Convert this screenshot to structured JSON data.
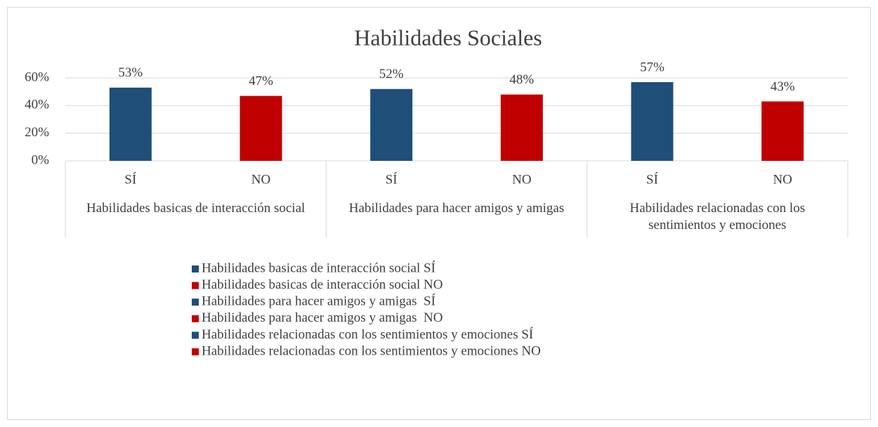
{
  "chart_data": {
    "type": "bar",
    "title": "Habilidades Sociales",
    "categories": [
      "SÍ",
      "NO",
      "SÍ",
      "NO",
      "SÍ",
      "NO"
    ],
    "groups": [
      "Habilidades basicas de interacción social",
      "Habilidades para hacer amigos y amigas",
      "Habilidades relacionadas con los sentimientos y emociones"
    ],
    "series": [
      {
        "name": "Habilidades basicas de interacción social SÍ",
        "color": "#1f4e79",
        "values": [
          53,
          null,
          null,
          null,
          null,
          null
        ],
        "value_labels": [
          "53%",
          null,
          null,
          null,
          null,
          null
        ]
      },
      {
        "name": "Habilidades basicas de interacción social NO",
        "color": "#c00000",
        "values": [
          null,
          47,
          null,
          null,
          null,
          null
        ],
        "value_labels": [
          null,
          "47%",
          null,
          null,
          null,
          null
        ]
      },
      {
        "name": "Habilidades para hacer amigos y amigas  SÍ",
        "color": "#1f4e79",
        "values": [
          null,
          null,
          52,
          null,
          null,
          null
        ],
        "value_labels": [
          null,
          null,
          "52%",
          null,
          null,
          null
        ]
      },
      {
        "name": "Habilidades para hacer amigos y amigas  NO",
        "color": "#c00000",
        "values": [
          null,
          null,
          null,
          48,
          null,
          null
        ],
        "value_labels": [
          null,
          null,
          null,
          "48%",
          null,
          null
        ]
      },
      {
        "name": "Habilidades relacionadas con los sentimientos y emociones SÍ",
        "color": "#1f4e79",
        "values": [
          null,
          null,
          null,
          null,
          57,
          null
        ],
        "value_labels": [
          null,
          null,
          null,
          null,
          "57%",
          null
        ]
      },
      {
        "name": "Habilidades relacionadas con los sentimientos y emociones NO",
        "color": "#c00000",
        "values": [
          null,
          null,
          null,
          null,
          null,
          43
        ],
        "value_labels": [
          null,
          null,
          null,
          null,
          null,
          "43%"
        ]
      }
    ],
    "ylim": [
      0,
      60
    ],
    "yticks": [
      {
        "value": 0,
        "label": "0%"
      },
      {
        "value": 20,
        "label": "20%"
      },
      {
        "value": 40,
        "label": "40%"
      },
      {
        "value": 60,
        "label": "60%"
      }
    ],
    "grid": true
  }
}
